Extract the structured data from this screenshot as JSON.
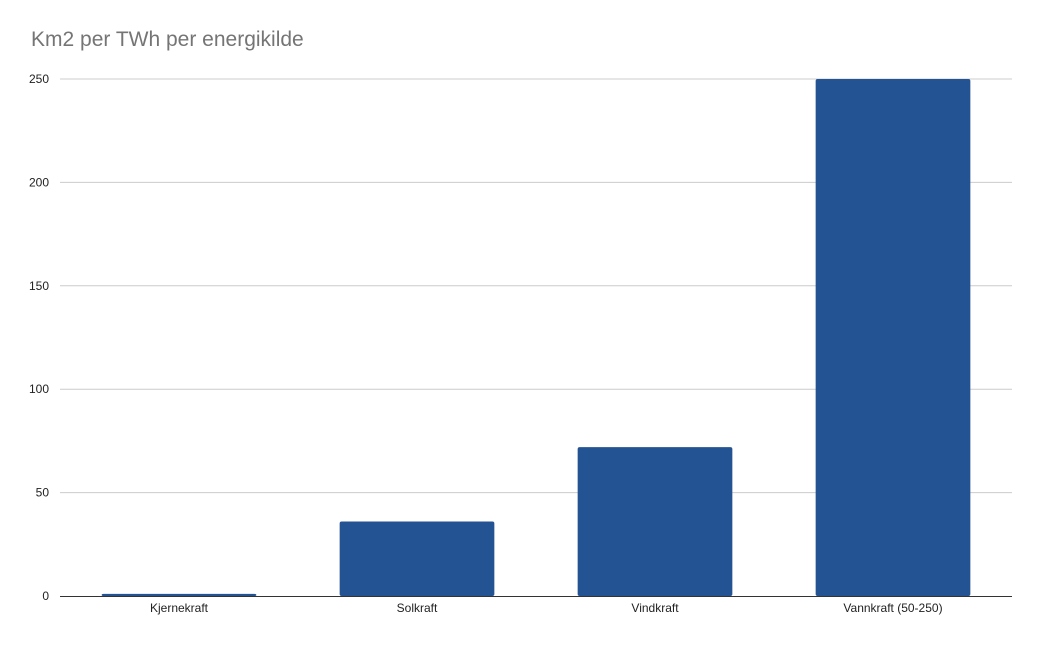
{
  "chart_data": {
    "type": "bar",
    "title": "Km2 per TWh per energikilde",
    "xlabel": "",
    "ylabel": "",
    "categories": [
      "Kjernekraft",
      "Solkraft",
      "Vindkraft",
      "Vannkraft (50-250)"
    ],
    "values": [
      1,
      36,
      72,
      250
    ],
    "ylim": [
      0,
      250
    ],
    "yticks": [
      "0",
      "50",
      "100",
      "150",
      "200",
      "250"
    ],
    "grid": true,
    "legend": "none",
    "bar_color": "#245393",
    "grid_color": "#cccccc",
    "axis_color": "#333333"
  }
}
